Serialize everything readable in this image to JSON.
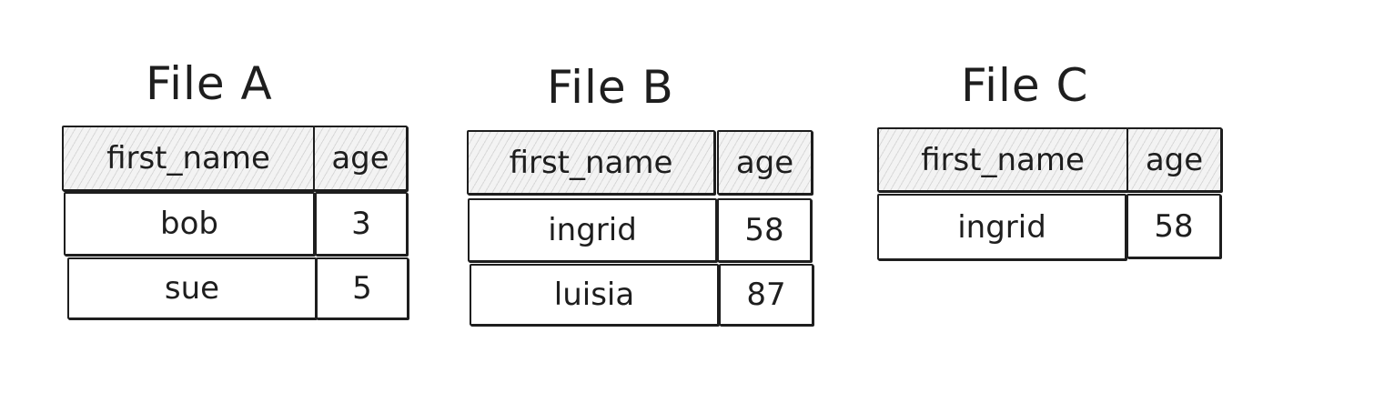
{
  "files": [
    {
      "title": "File A",
      "headers": {
        "first_name": "first_name",
        "age": "age"
      },
      "rows": [
        {
          "first_name": "bob",
          "age": "3"
        },
        {
          "first_name": "sue",
          "age": "5"
        }
      ]
    },
    {
      "title": "File B",
      "headers": {
        "first_name": "first_name",
        "age": "age"
      },
      "rows": [
        {
          "first_name": "ingrid",
          "age": "58"
        },
        {
          "first_name": "luisia",
          "age": "87"
        }
      ]
    },
    {
      "title": "File C",
      "headers": {
        "first_name": "first_name",
        "age": "age"
      },
      "rows": [
        {
          "first_name": "ingrid",
          "age": "58"
        }
      ]
    }
  ],
  "colors": {
    "stroke": "#1e1e1e",
    "header_fill": "#f3f3f3",
    "background": "#ffffff"
  }
}
